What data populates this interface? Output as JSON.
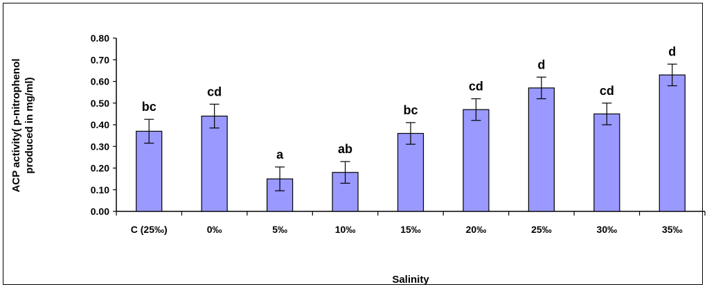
{
  "chart_data": {
    "type": "bar",
    "xlabel": "Salinity",
    "ylabel_lines": [
      "ACP activity( p-nitrophenol",
      "produced in mg/ml)"
    ],
    "ylim": [
      0,
      0.8
    ],
    "yticks": [
      "0.00",
      "0.10",
      "0.20",
      "0.30",
      "0.40",
      "0.50",
      "0.60",
      "0.70",
      "0.80"
    ],
    "categories": [
      "C (25‰)",
      "0‰",
      "5‰",
      "10‰",
      "15‰",
      "20‰",
      "25‰",
      "30‰",
      "35‰"
    ],
    "values": [
      0.37,
      0.44,
      0.15,
      0.18,
      0.36,
      0.47,
      0.57,
      0.45,
      0.63
    ],
    "errors": [
      0.055,
      0.055,
      0.055,
      0.05,
      0.05,
      0.05,
      0.05,
      0.05,
      0.05
    ],
    "significance": [
      "bc",
      "cd",
      "a",
      "ab",
      "bc",
      "cd",
      "d",
      "cd",
      "d"
    ],
    "bar_color": "#9999ff",
    "grid": false,
    "legend": "none"
  }
}
